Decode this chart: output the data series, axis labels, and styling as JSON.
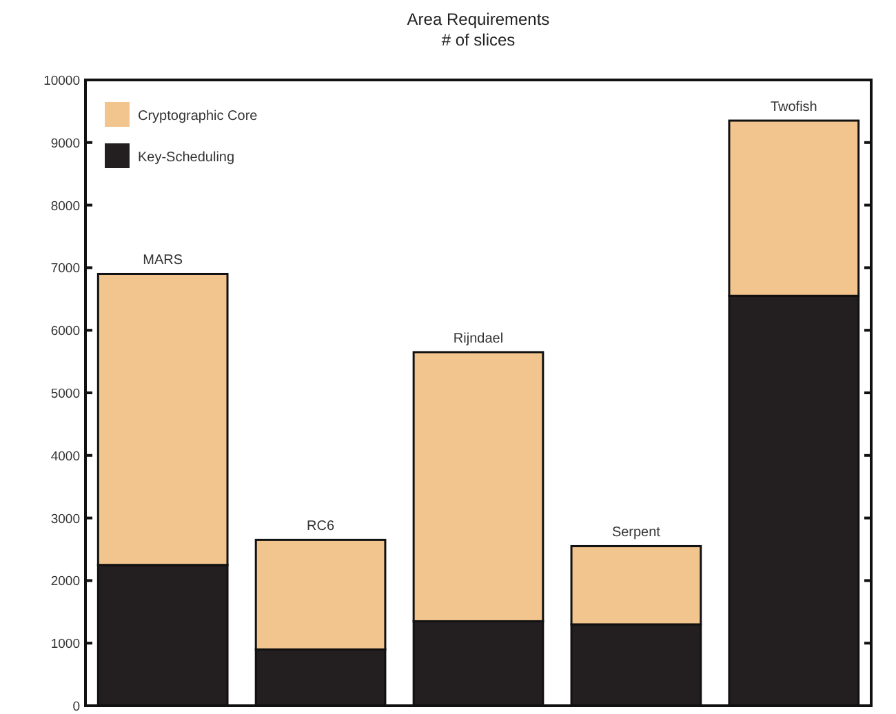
{
  "chart_data": {
    "type": "bar",
    "title": "Area Requirements",
    "subtitle": "# of slices",
    "categories": [
      "MARS",
      "RC6",
      "Rijndael",
      "Serpent",
      "Twofish"
    ],
    "stacked": true,
    "series": [
      {
        "name": "Key-Scheduling",
        "color": "#231f20",
        "values": [
          2250,
          900,
          1350,
          1300,
          6550
        ]
      },
      {
        "name": "Cryptographic Core",
        "color": "#f2c48e",
        "values": [
          4650,
          1750,
          4300,
          1250,
          2800
        ]
      }
    ],
    "ylim": [
      0,
      10000
    ],
    "yticks": [
      0,
      1000,
      2000,
      3000,
      4000,
      5000,
      6000,
      7000,
      8000,
      9000,
      10000
    ],
    "legend": "top left",
    "grid": false
  }
}
